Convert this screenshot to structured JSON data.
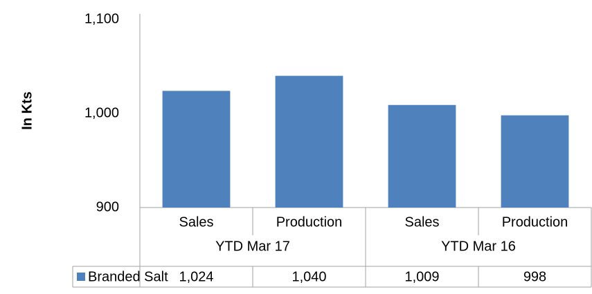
{
  "chart_data": {
    "type": "bar",
    "y_label": "In Kts",
    "categories": [
      "Sales",
      "Production",
      "Sales",
      "Production"
    ],
    "groups": [
      "YTD Mar 17",
      "YTD Mar 16"
    ],
    "series": [
      {
        "name": "Branded Salt",
        "color": "#4f81bd",
        "values": [
          1024,
          1040,
          1009,
          998
        ],
        "value_labels": [
          "1,024",
          "1,040",
          "1,009",
          "998"
        ]
      }
    ],
    "ylim": [
      900,
      1100
    ],
    "yticks": [
      {
        "value": 900,
        "label": "900"
      },
      {
        "value": 1000,
        "label": "1,000"
      },
      {
        "value": 1100,
        "label": "1,100"
      }
    ],
    "grid": false
  }
}
